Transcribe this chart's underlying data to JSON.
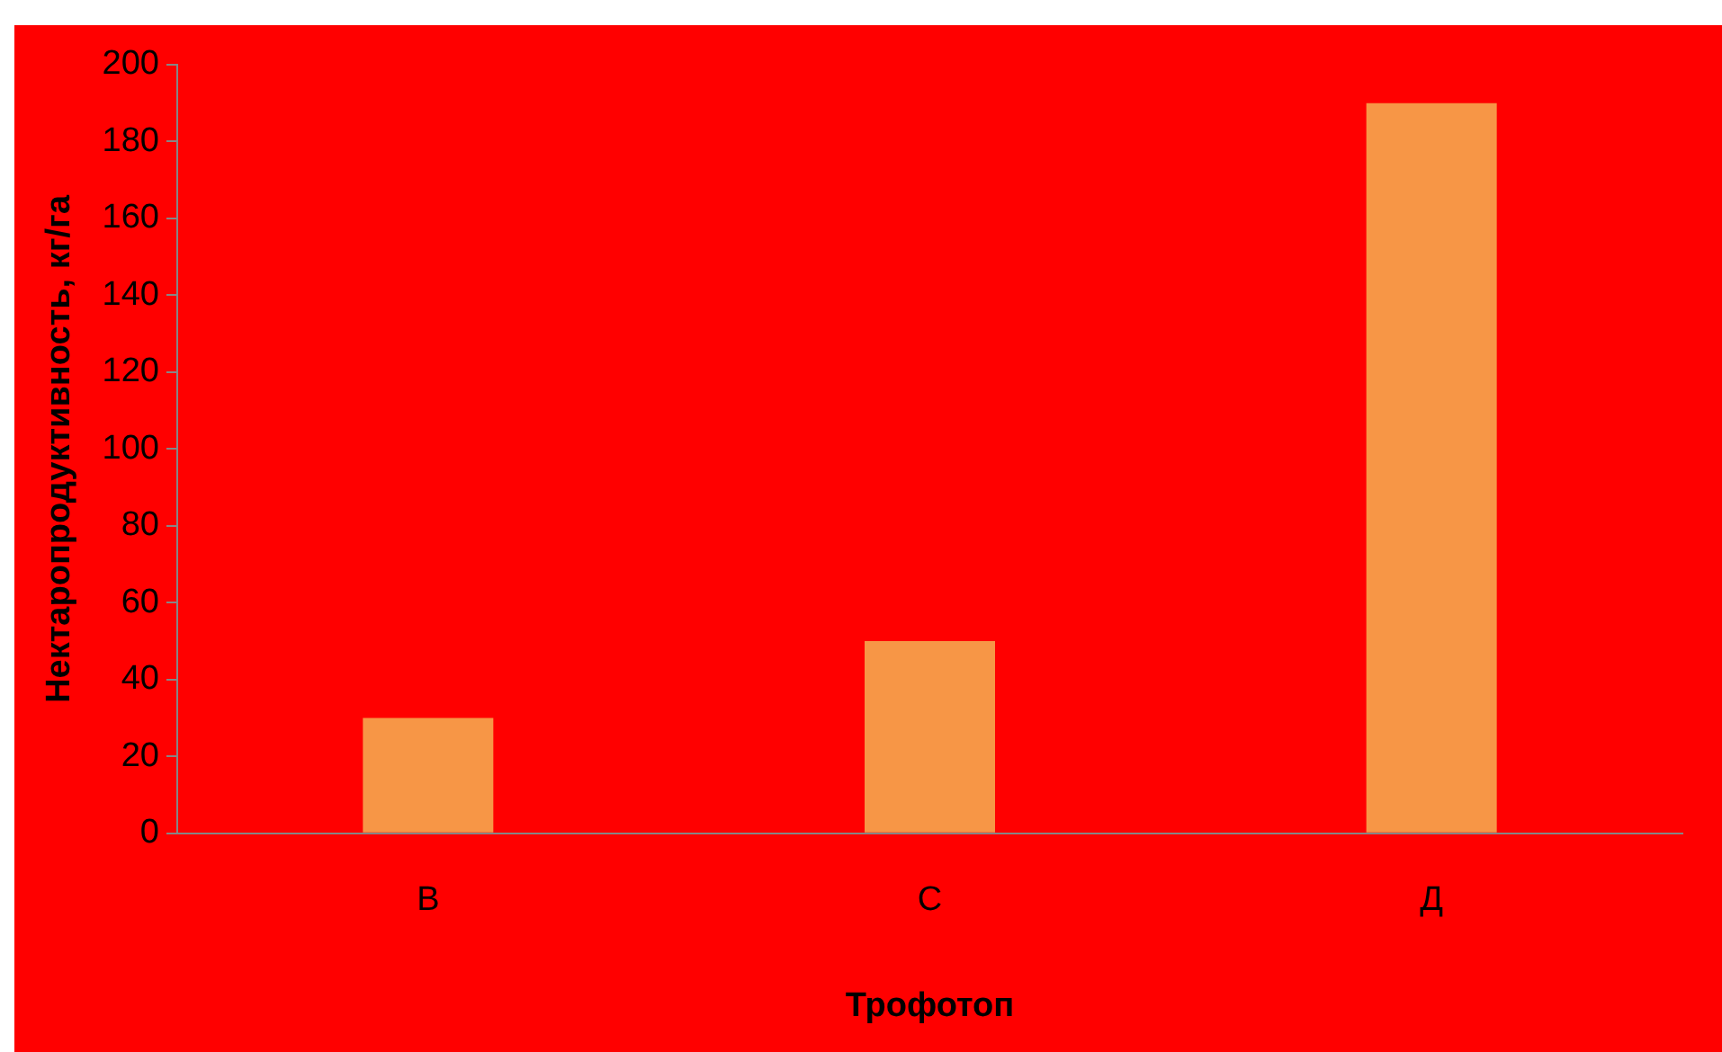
{
  "chart_data": {
    "type": "bar",
    "xlabel": "Трофотоп",
    "ylabel": "Нектаропродуктивность, кг/га",
    "categories": [
      "В",
      "С",
      "Д"
    ],
    "values": [
      30,
      50,
      190
    ],
    "color": "#f79646",
    "ylim": [
      0,
      200
    ],
    "yticks": [
      0,
      20,
      40,
      60,
      80,
      100,
      120,
      140,
      160,
      180,
      200
    ],
    "grid": false,
    "legend": false
  }
}
